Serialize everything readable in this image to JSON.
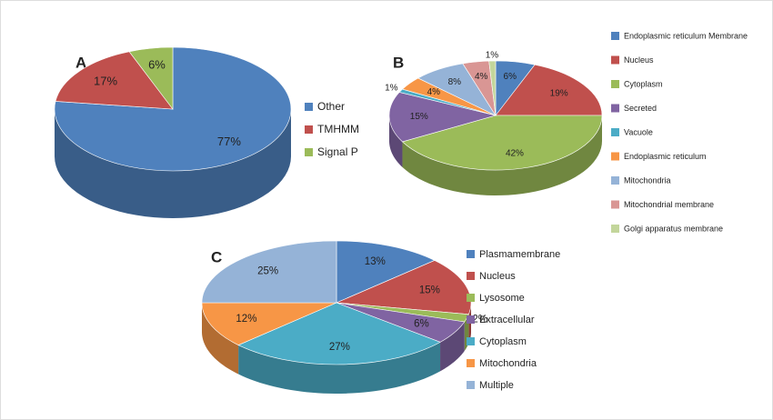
{
  "chart_data": [
    {
      "type": "pie",
      "title": "A",
      "categories": [
        "Other",
        "TMHMM",
        "Signal P"
      ],
      "values": [
        77,
        17,
        6
      ],
      "value_labels": [
        "77%",
        "17%",
        "6%"
      ],
      "colors": [
        "#4f81bd",
        "#c0504d",
        "#9bbb59"
      ]
    },
    {
      "type": "pie",
      "title": "B",
      "categories": [
        "Endoplasmic reticulum Membrane",
        "Nucleus",
        "Cytoplasm",
        "Secreted",
        "Vacuole",
        "Endoplasmic reticulum",
        "Mitochondria",
        "Mitochondrial membrane",
        "Golgi apparatus membrane"
      ],
      "values": [
        6,
        19,
        42,
        15,
        1,
        4,
        8,
        4,
        1
      ],
      "value_labels": [
        "6%",
        "19%",
        "42%",
        "15%",
        "1%",
        "4%",
        "8%",
        "4%",
        "1%"
      ],
      "colors": [
        "#4f81bd",
        "#c0504d",
        "#9bbb59",
        "#8064a2",
        "#4bacc6",
        "#f79646",
        "#95b3d7",
        "#d99694",
        "#c3d69b"
      ]
    },
    {
      "type": "pie",
      "title": "C",
      "categories": [
        "Plasmamembrane",
        "Nucleus",
        "Lysosome",
        "Extracellular",
        "Cytoplasm",
        "Mitochondria",
        "Multiple"
      ],
      "values": [
        13,
        15,
        2,
        6,
        27,
        12,
        25
      ],
      "value_labels": [
        "13%",
        "15%",
        "2%",
        "6%",
        "27%",
        "12%",
        "25%"
      ],
      "colors": [
        "#4f81bd",
        "#c0504d",
        "#9bbb59",
        "#8064a2",
        "#4bacc6",
        "#f79646",
        "#95b3d7"
      ]
    }
  ]
}
